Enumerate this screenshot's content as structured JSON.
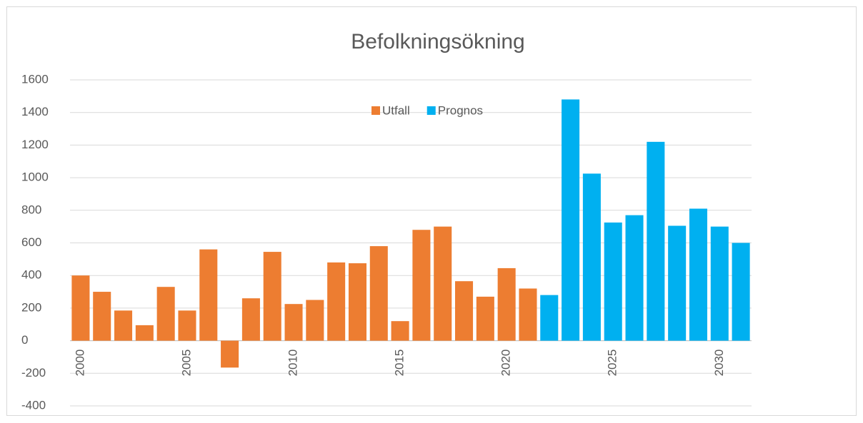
{
  "chart_data": {
    "type": "bar",
    "title": "Befolkningsökning",
    "categories": [
      "2000",
      null,
      null,
      null,
      null,
      "2005",
      null,
      null,
      null,
      null,
      "2010",
      null,
      null,
      null,
      null,
      "2015",
      null,
      null,
      null,
      null,
      "2020",
      null,
      null,
      null,
      null,
      "2025",
      null,
      null,
      null,
      null,
      "2030",
      null
    ],
    "series": [
      {
        "name": "Utfall",
        "color": "#ed7d31",
        "values": [
          400,
          300,
          185,
          95,
          330,
          185,
          560,
          -165,
          260,
          545,
          225,
          250,
          480,
          475,
          580,
          120,
          680,
          700,
          365,
          270,
          445,
          320,
          null,
          null,
          null,
          null,
          null,
          null,
          null,
          null,
          null,
          null
        ]
      },
      {
        "name": "Prognos",
        "color": "#00b0f0",
        "values": [
          null,
          null,
          null,
          null,
          null,
          null,
          null,
          null,
          null,
          null,
          null,
          null,
          null,
          null,
          null,
          null,
          null,
          null,
          null,
          null,
          null,
          null,
          280,
          1480,
          1025,
          725,
          770,
          1220,
          705,
          810,
          700,
          600
        ]
      }
    ],
    "ylim": [
      -400,
      1600
    ],
    "yticks": [
      -400,
      -200,
      0,
      200,
      400,
      600,
      800,
      1000,
      1200,
      1400,
      1600
    ],
    "grid": true,
    "legend": "top"
  }
}
